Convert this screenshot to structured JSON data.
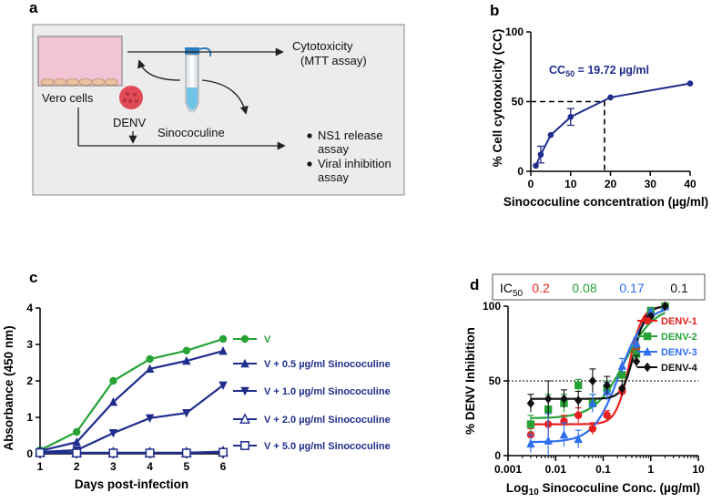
{
  "panels": {
    "a": {
      "letter": "a",
      "cells_label": "Vero cells",
      "virus_label": "DENV",
      "drug_label": "Sinococuline",
      "out1_title": "Cytotoxicity",
      "out1_sub": "(MTT assay)",
      "bullet1_line1": "NS1 release",
      "bullet1_line2": "assay",
      "bullet2_line1": "Viral inhibition",
      "bullet2_line2": "assay"
    },
    "b": {
      "letter": "b"
    },
    "c": {
      "letter": "c"
    },
    "d": {
      "letter": "d"
    }
  },
  "colors": {
    "navy": "#1f2d8c",
    "green": "#27a336",
    "red": "#e8201f",
    "blue": "#2f6ff0",
    "black": "#111111",
    "schematic_bg": "#ececec",
    "medium_pink": "#f3c3d6",
    "virus": "#e04b55",
    "tube_liquid": "#6ec3e6"
  },
  "chart_data": [
    {
      "id": "b",
      "type": "line",
      "xlabel": "Sinococuline concentration (µg/ml)",
      "ylabel": "% Cell cytotoxicity (CC)",
      "xlim": [
        0,
        40
      ],
      "ylim": [
        0,
        100
      ],
      "xticks": [
        "0",
        "10",
        "20",
        "30",
        "40"
      ],
      "yticks": [
        "0",
        "50",
        "100"
      ],
      "annotation_prefix": "CC",
      "annotation_sub": "50",
      "annotation_value": " = 19.72 µg/ml",
      "cc50_x": 18.5,
      "cc50_y": 50,
      "series": [
        {
          "name": "Cytotoxicity",
          "color": "#1f2d8c",
          "x": [
            1.25,
            2.5,
            5,
            10,
            20,
            40
          ],
          "y": [
            4,
            12,
            26,
            39,
            53,
            63
          ],
          "err": [
            0,
            6,
            0,
            6,
            0,
            0
          ]
        }
      ]
    },
    {
      "id": "c",
      "type": "line",
      "xlabel": "Days post-infection",
      "ylabel": "Absorbance (450 nm)",
      "xlim": [
        1,
        6
      ],
      "ylim": [
        0,
        4
      ],
      "xticks": [
        "1",
        "2",
        "3",
        "4",
        "5",
        "6"
      ],
      "yticks": [
        "0",
        "1",
        "2",
        "3",
        "4"
      ],
      "x": [
        1,
        2,
        3,
        4,
        5,
        6
      ],
      "series": [
        {
          "name": "V",
          "color": "#27a336",
          "marker": "circle",
          "values": [
            0.1,
            0.6,
            2.0,
            2.6,
            2.83,
            3.15
          ]
        },
        {
          "name": "V + 0.5 µg/ml Sinococuline",
          "color": "#1f2d8c",
          "marker": "triangle-up",
          "values": [
            0.08,
            0.32,
            1.42,
            2.33,
            2.55,
            2.82
          ]
        },
        {
          "name": "V + 1.0 µg/ml Sinococuline",
          "color": "#1f2d8c",
          "marker": "triangle-down",
          "values": [
            0.05,
            0.1,
            0.57,
            0.98,
            1.12,
            1.88
          ]
        },
        {
          "name": "V + 2.0 µg/ml Sinococuline",
          "color": "#1f2d8c",
          "marker": "triangle-open",
          "values": [
            0.05,
            0.03,
            0.03,
            0.03,
            0.03,
            0.06
          ]
        },
        {
          "name": "V + 5.0 µg/ml Sinococuline",
          "color": "#1f2d8c",
          "marker": "square-open",
          "values": [
            0.03,
            0.02,
            0.02,
            0.02,
            0.02,
            0.04
          ]
        }
      ]
    },
    {
      "id": "d",
      "type": "scatter",
      "xlabel_pre": "Log",
      "xlabel_sub": "10",
      "xlabel_post": " Sinococuline Conc. (µg/ml)",
      "ylabel": "% DENV Inhibition",
      "xscale": "log",
      "xlim": [
        0.001,
        10
      ],
      "ylim": [
        0,
        100
      ],
      "xticks": [
        "0.001",
        "0.01",
        "0.1",
        "1",
        "10"
      ],
      "yticks": [
        "0",
        "50",
        "100"
      ],
      "ref_line_y": 50,
      "ic50_prefix": "IC",
      "ic50_sub": "50",
      "ic50": [
        {
          "serotype": "DENV-1",
          "value": "0.2",
          "color": "#e8201f"
        },
        {
          "serotype": "DENV-2",
          "value": "0.08",
          "color": "#27a336"
        },
        {
          "serotype": "DENV-3",
          "value": "0.17",
          "color": "#2f6ff0"
        },
        {
          "serotype": "DENV-4",
          "value": "0.1",
          "color": "#111111"
        }
      ],
      "x": [
        0.003,
        0.007,
        0.015,
        0.03,
        0.06,
        0.12,
        0.25,
        0.5,
        1.0,
        2.0
      ],
      "series": [
        {
          "name": "DENV-1",
          "color": "#e8201f",
          "marker": "circle",
          "values": [
            14,
            21,
            23,
            27,
            18,
            27,
            43,
            72,
            95,
            100
          ],
          "err": [
            4,
            10,
            4,
            5,
            4,
            3,
            3,
            3,
            2,
            0
          ],
          "fit": {
            "bottom": 21,
            "top": 100,
            "ic50": 0.35,
            "hill": 3.2
          }
        },
        {
          "name": "DENV-2",
          "color": "#27a336",
          "marker": "square",
          "values": [
            21,
            31,
            35,
            47,
            35,
            45,
            54,
            68,
            97,
            100
          ],
          "err": [
            6,
            10,
            6,
            4,
            6,
            5,
            4,
            4,
            2,
            0
          ],
          "fit": {
            "bottom": 25,
            "top": 100,
            "ic50": 0.28,
            "hill": 1.4
          }
        },
        {
          "name": "DENV-3",
          "color": "#2f6ff0",
          "marker": "triangle-up",
          "values": [
            8,
            10,
            14,
            11,
            35,
            43,
            60,
            75,
            96,
            100
          ],
          "err": [
            6,
            18,
            8,
            6,
            6,
            6,
            5,
            4,
            2,
            0
          ],
          "fit": {
            "bottom": 9,
            "top": 100,
            "ic50": 0.22,
            "hill": 1.6
          }
        },
        {
          "name": "DENV-4",
          "color": "#111111",
          "marker": "diamond",
          "values": [
            35,
            38,
            38,
            37,
            50,
            47,
            45,
            63,
            93,
            100
          ],
          "err": [
            6,
            12,
            6,
            6,
            8,
            6,
            5,
            4,
            2,
            0
          ],
          "fit": {
            "bottom": 38,
            "top": 100,
            "ic50": 0.45,
            "hill": 3.5
          }
        }
      ]
    }
  ]
}
